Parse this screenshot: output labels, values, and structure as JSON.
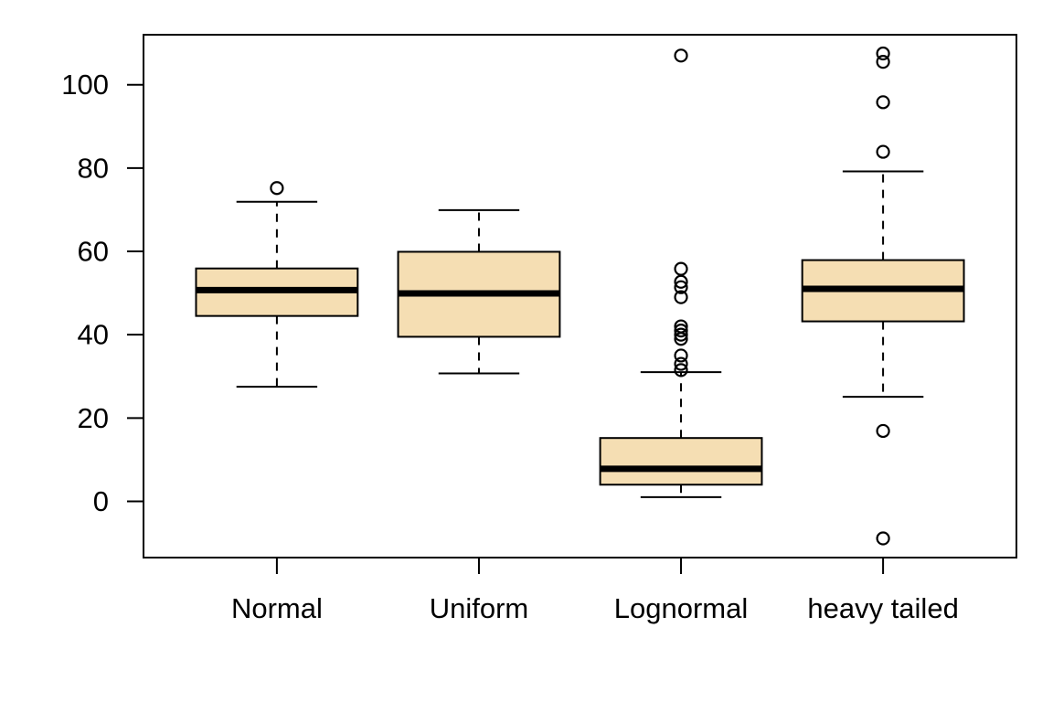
{
  "figure": {
    "background": "#ffffff",
    "foreground": "#000000"
  },
  "chart_data": {
    "type": "boxplot",
    "title": "",
    "xlabel": "",
    "ylabel": "",
    "grid": false,
    "legend": null,
    "box_fill": "#f5deb3",
    "stroke_color": "#000000",
    "categories": [
      "Normal",
      "Uniform",
      "Lognormal",
      "heavy tailed"
    ],
    "y_ticks": [
      0,
      20,
      40,
      60,
      80,
      100
    ],
    "ylim": [
      -13.5,
      112
    ],
    "series": [
      {
        "name": "Normal",
        "whisker_low": 27.5,
        "q1": 44.5,
        "median": 50.7,
        "q3": 55.9,
        "whisker_high": 71.9,
        "outliers": [
          75.2
        ]
      },
      {
        "name": "Uniform",
        "whisker_low": 30.7,
        "q1": 39.5,
        "median": 49.9,
        "q3": 59.9,
        "whisker_high": 69.9,
        "outliers": []
      },
      {
        "name": "Lognormal",
        "whisker_low": 1.0,
        "q1": 4.0,
        "median": 7.8,
        "q3": 15.2,
        "whisker_high": 31.0,
        "outliers": [
          31.5,
          33.0,
          35.0,
          39.0,
          40.0,
          41.0,
          42.0,
          49.0,
          51.4,
          52.7,
          55.8,
          107.0
        ]
      },
      {
        "name": "heavy tailed",
        "whisker_low": 25.1,
        "q1": 43.2,
        "median": 51.0,
        "q3": 57.9,
        "whisker_high": 79.2,
        "outliers": [
          -8.9,
          16.9,
          83.9,
          95.8,
          105.5,
          107.5
        ]
      }
    ]
  }
}
